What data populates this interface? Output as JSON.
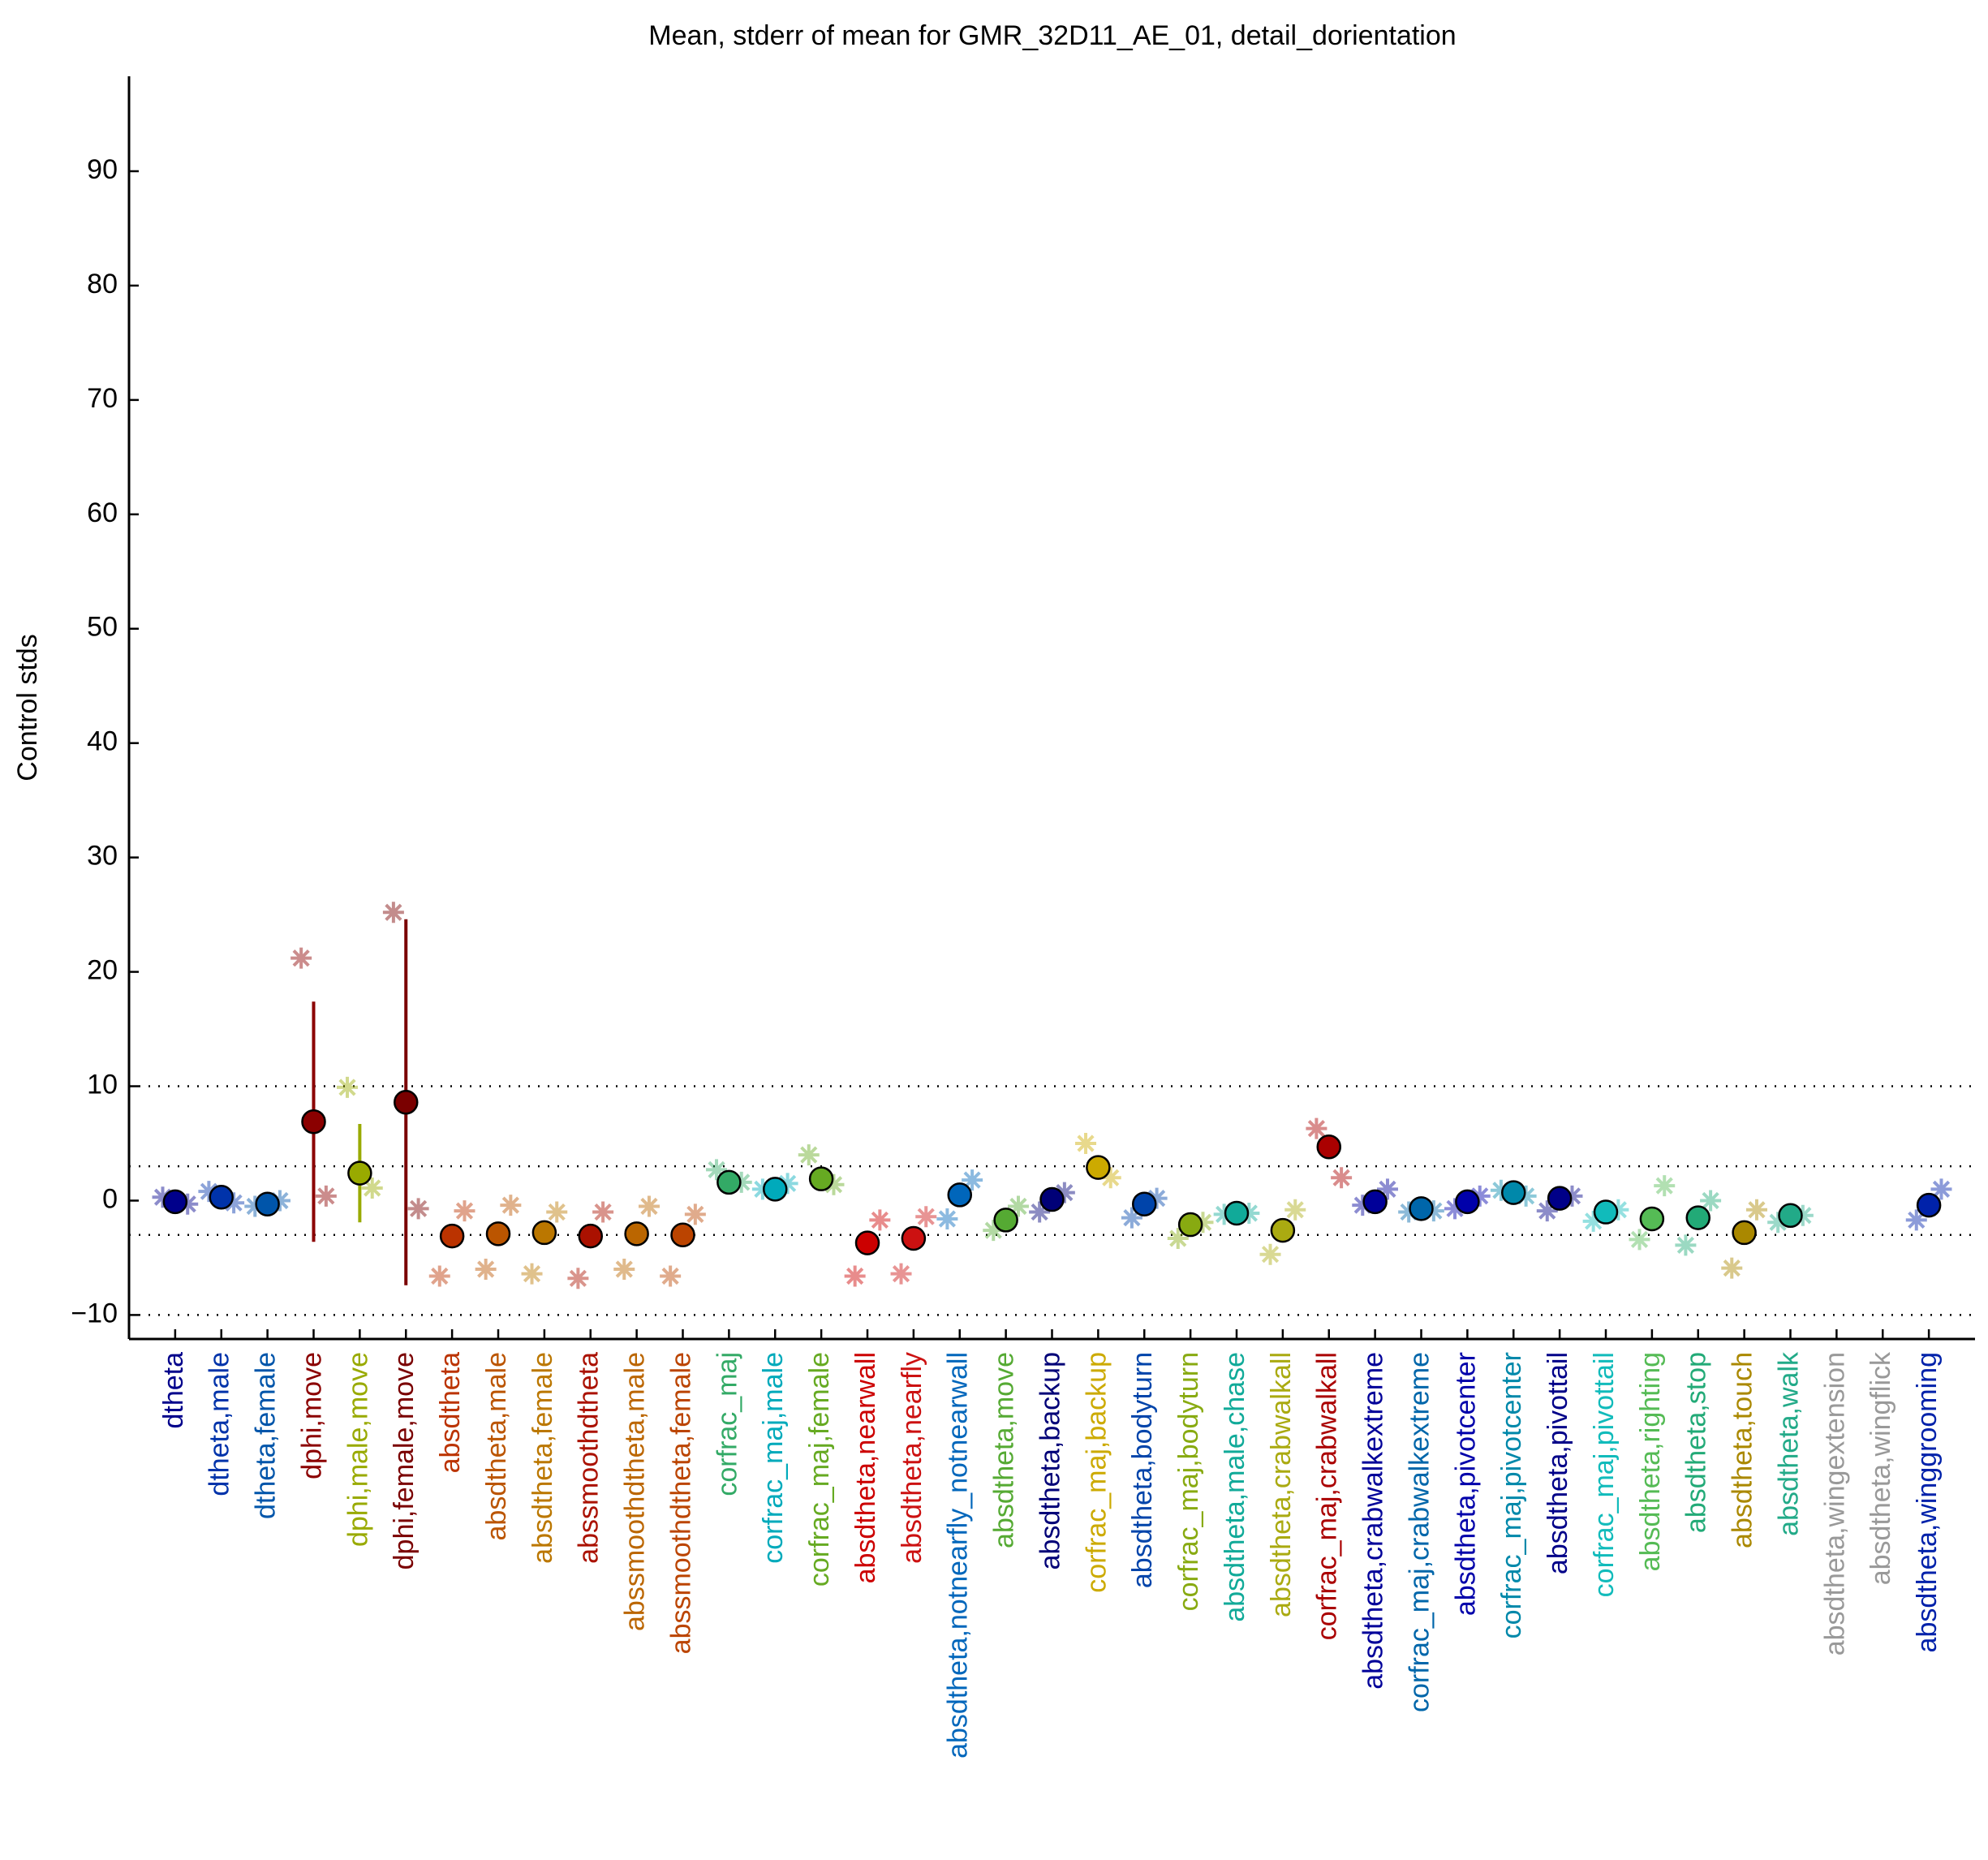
{
  "chart_data": {
    "type": "dot-errorbar",
    "title": "Mean, stderr of mean for GMR_32D11_AE_01, detail_dorientation",
    "ylabel": "Control stds",
    "categories": [
      "dtheta",
      "dtheta,male",
      "dtheta,female",
      "dphi,move",
      "dphi,male,move",
      "dphi,female,move",
      "absdtheta",
      "absdtheta,male",
      "absdtheta,female",
      "abssmoothdtheta",
      "abssmoothdtheta,male",
      "abssmoothdtheta,female",
      "corfrac_maj",
      "corfrac_maj,male",
      "corfrac_maj,female",
      "absdtheta,nearwall",
      "absdtheta,nearfly",
      "absdtheta,notnearfly_notnearwall",
      "absdtheta,move",
      "absdtheta,backup",
      "corfrac_maj,backup",
      "absdtheta,bodyturn",
      "corfrac_maj,bodyturn",
      "absdtheta,male,chase",
      "absdtheta,crabwalkall",
      "corfrac_maj,crabwalkall",
      "absdtheta,crabwalkextreme",
      "corfrac_maj,crabwalkextreme",
      "absdtheta,pivotcenter",
      "corfrac_maj,pivotcenter",
      "absdtheta,pivottail",
      "corfrac_maj,pivottail",
      "absdtheta,righting",
      "absdtheta,stop",
      "absdtheta,touch",
      "absdtheta,walk",
      "absdtheta,wingextension",
      "absdtheta,wingflick",
      "absdtheta,winggrooming"
    ],
    "colors": [
      "#00008b",
      "#0033aa",
      "#0055aa",
      "#8b0000",
      "#99aa00",
      "#7a0000",
      "#bb3300",
      "#bb5500",
      "#bb7700",
      "#aa1100",
      "#bb6600",
      "#bb4400",
      "#33aa66",
      "#00aabb",
      "#66aa22",
      "#cc0000",
      "#cc1111",
      "#0066bb",
      "#55aa33",
      "#000077",
      "#ccaa00",
      "#0044aa",
      "#88aa11",
      "#11aa99",
      "#aaaa11",
      "#aa0000",
      "#000099",
      "#0066aa",
      "#0000aa",
      "#0088aa",
      "#000088",
      "#11bbbb",
      "#55bb55",
      "#22aa77",
      "#aa8800",
      "#22aa88",
      "#999999",
      "#999999",
      "#0022aa"
    ],
    "values": [
      -0.1,
      0.3,
      -0.3,
      6.9,
      2.4,
      8.6,
      -3.1,
      -2.9,
      -2.8,
      -3.1,
      -2.9,
      -3.0,
      1.6,
      1.0,
      1.9,
      -3.7,
      -3.3,
      0.5,
      -1.7,
      0.1,
      2.9,
      -0.3,
      -2.1,
      -1.1,
      -2.6,
      4.7,
      -0.1,
      -0.7,
      -0.1,
      0.7,
      0.2,
      -1.0,
      -1.6,
      -1.5,
      -2.8,
      -1.3,
      null,
      null,
      -0.4
    ],
    "errors": [
      0.8,
      0.5,
      0.8,
      10.5,
      4.3,
      16.0,
      0.8,
      0.8,
      0.8,
      0.8,
      0.8,
      0.8,
      0.5,
      0.5,
      0.5,
      0.8,
      0.8,
      0.5,
      0.5,
      0.5,
      1.0,
      0.5,
      0.5,
      0.5,
      0.5,
      1.0,
      0.5,
      0.5,
      0.5,
      0.5,
      0.5,
      0.5,
      0.5,
      0.5,
      0.8,
      0.5,
      null,
      null,
      0.5
    ],
    "values_left": [
      0.3,
      0.8,
      -0.5,
      21.2,
      9.9,
      25.2,
      -6.6,
      -6.0,
      -6.4,
      -6.8,
      -6.0,
      -6.6,
      2.7,
      1.0,
      4.0,
      -6.6,
      -6.4,
      -1.6,
      -2.6,
      -1.0,
      5.0,
      -1.5,
      -3.3,
      -1.2,
      -4.7,
      6.3,
      -0.4,
      -1.0,
      -0.7,
      0.9,
      -0.9,
      -1.8,
      -3.4,
      -3.9,
      -5.9,
      -1.9,
      null,
      null,
      -1.7
    ],
    "values_right": [
      -0.3,
      -0.2,
      0.0,
      0.4,
      1.1,
      -0.7,
      -0.9,
      -0.4,
      -1.0,
      -1.0,
      -0.5,
      -1.2,
      1.6,
      1.5,
      1.4,
      -1.7,
      -1.4,
      1.8,
      -0.5,
      0.7,
      2.0,
      0.2,
      -1.9,
      -1.1,
      -0.8,
      2.0,
      1.0,
      -0.9,
      0.4,
      0.4,
      0.4,
      -0.8,
      1.3,
      0.0,
      -0.8,
      -1.3,
      null,
      null,
      1.0
    ],
    "ylim": [
      -12.1,
      98.3
    ],
    "yticks": [
      {
        "value": -10,
        "label": "−10"
      },
      0,
      10,
      20,
      30,
      40,
      50,
      60,
      70,
      80,
      90
    ],
    "hlines": [
      10,
      3,
      -3,
      -10
    ]
  }
}
